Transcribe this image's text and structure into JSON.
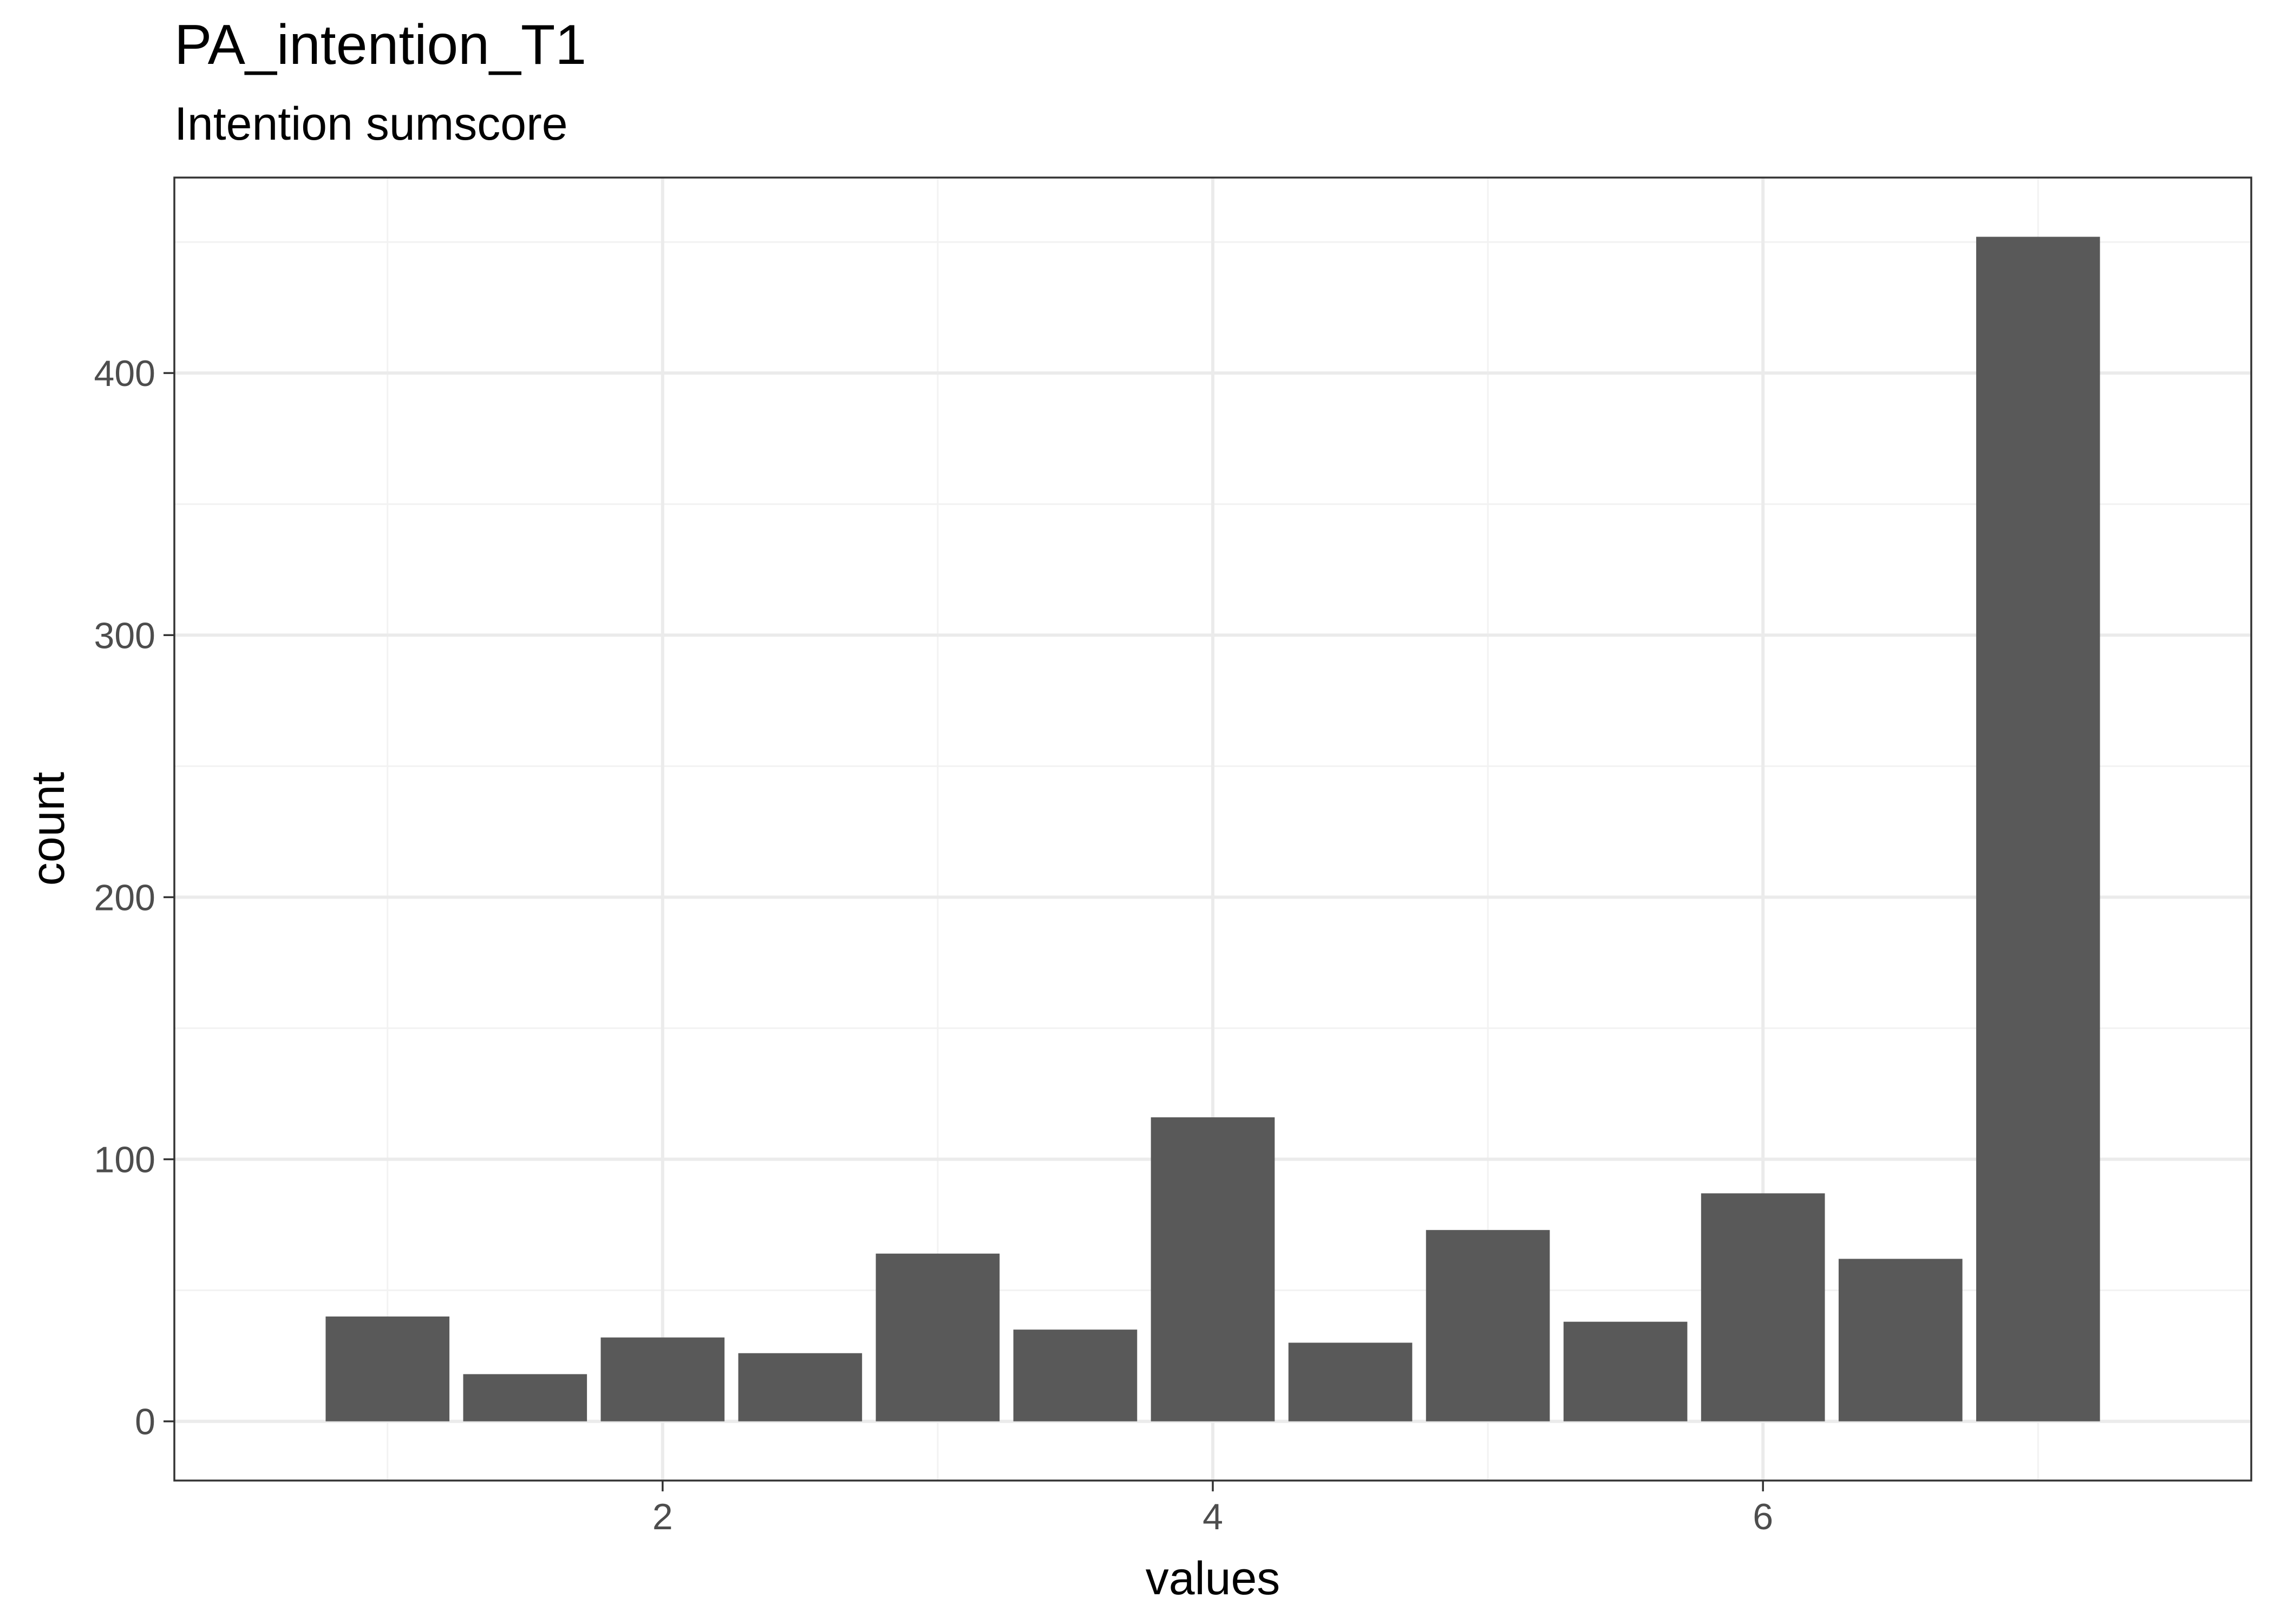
{
  "chart_data": {
    "type": "bar",
    "title": "PA_intention_T1",
    "subtitle": "Intention sumscore",
    "xlabel": "values",
    "ylabel": "count",
    "x": [
      1.0,
      1.5,
      2.0,
      2.5,
      3.0,
      3.5,
      4.0,
      4.5,
      5.0,
      5.5,
      6.0,
      6.5,
      7.0
    ],
    "values": [
      40,
      18,
      32,
      26,
      64,
      35,
      116,
      30,
      73,
      38,
      87,
      62,
      452
    ],
    "bar_width": 0.45,
    "xlim": [
      0.225,
      7.775
    ],
    "ylim": [
      -22.6,
      474.6
    ],
    "x_ticks": [
      2,
      4,
      6
    ],
    "x_tick_labels": [
      "2",
      "4",
      "6"
    ],
    "x_minor_ticks": [
      1,
      3,
      5,
      7
    ],
    "y_ticks": [
      0,
      100,
      200,
      300,
      400
    ],
    "y_tick_labels": [
      "0",
      "100",
      "200",
      "300",
      "400"
    ],
    "y_minor_ticks": [
      50,
      150,
      250,
      350,
      450
    ],
    "grid": true,
    "colors": {
      "bar": "#595959",
      "panel_border": "#333333",
      "grid_major": "#ebebeb",
      "grid_minor": "#f2f2f2",
      "tick_label": "#4d4d4d"
    }
  }
}
